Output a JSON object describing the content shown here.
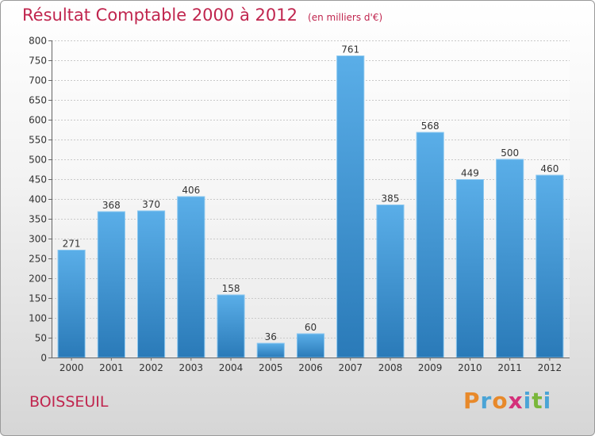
{
  "header": {
    "title": "Résultat Comptable 2000 à 2012",
    "subtitle": "(en milliers d'€)"
  },
  "footer": {
    "place": "BOISSEUIL",
    "logo_letters": [
      "P",
      "r",
      "o",
      "x",
      "i",
      "t",
      "i"
    ],
    "logo_colors": [
      "#e8892a",
      "#4aa4d6",
      "#e8892a",
      "#d4307a",
      "#4aa4d6",
      "#7ab73b",
      "#4aa4d6"
    ]
  },
  "chart_data": {
    "type": "bar",
    "categories": [
      "2000",
      "2001",
      "2002",
      "2003",
      "2004",
      "2005",
      "2006",
      "2007",
      "2008",
      "2009",
      "2010",
      "2011",
      "2012"
    ],
    "values": [
      271,
      368,
      370,
      406,
      158,
      36,
      60,
      761,
      385,
      568,
      449,
      500,
      460
    ],
    "ylim": [
      0,
      800
    ],
    "yticks": [
      0,
      50,
      100,
      150,
      200,
      250,
      300,
      350,
      400,
      450,
      500,
      550,
      600,
      650,
      700,
      750,
      800
    ],
    "grid": true,
    "bar_color_top": "#5aaee8",
    "bar_color_bottom": "#2a7ab8"
  }
}
